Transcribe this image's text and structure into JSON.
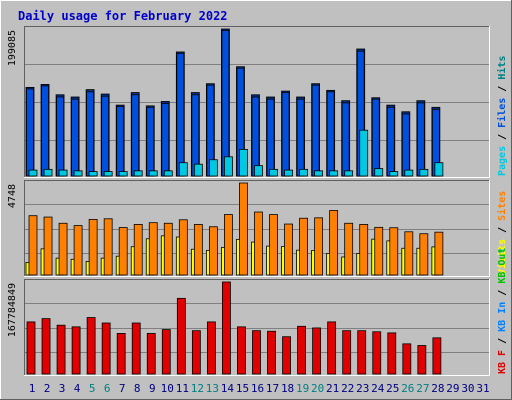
{
  "title": "Daily usage for February 2022",
  "colors": {
    "bg": "#c0c0c0",
    "title": "#0000cc",
    "pages": "#00c8e0",
    "files": "#0050e0",
    "hits": "#008080",
    "visits": "#ffff00",
    "sites": "#ff8000",
    "kbin": "#0080ff",
    "kbout": "#00c000",
    "kbf": "#e00000",
    "weekend": "#008080",
    "weekday": "#000080"
  },
  "chart_data": [
    {
      "type": "bar",
      "name": "hits-files-pages",
      "ymax_label": "199085",
      "right_label": [
        "Pages",
        "Files",
        "Hits"
      ],
      "x": [
        1,
        2,
        3,
        4,
        5,
        6,
        7,
        8,
        9,
        10,
        11,
        12,
        13,
        14,
        15,
        16,
        17,
        18,
        19,
        20,
        21,
        22,
        23,
        24,
        25,
        26,
        27,
        28,
        29,
        30,
        31
      ],
      "series": [
        {
          "name": "Hits",
          "values": [
            120000,
            124000,
            110000,
            107000,
            117000,
            111000,
            96000,
            113000,
            95000,
            101000,
            168000,
            113000,
            125000,
            199085,
            148000,
            110000,
            107000,
            115000,
            107000,
            125000,
            116000,
            102000,
            172000,
            106000,
            96000,
            87000,
            102000,
            93000,
            0,
            0,
            0
          ]
        },
        {
          "name": "Files",
          "values": [
            118000,
            122000,
            107000,
            104000,
            114000,
            108000,
            94000,
            110000,
            93000,
            98000,
            166000,
            110000,
            123000,
            197000,
            146000,
            107000,
            104000,
            113000,
            104000,
            123000,
            114000,
            99000,
            169000,
            104000,
            93000,
            84000,
            99000,
            90000,
            0,
            0,
            0
          ]
        },
        {
          "name": "Pages",
          "values": [
            8000,
            9000,
            8000,
            7000,
            6000,
            6000,
            6000,
            7000,
            7000,
            7000,
            18000,
            16000,
            22000,
            26000,
            36000,
            14000,
            9000,
            8000,
            9000,
            7000,
            7000,
            7000,
            62000,
            10000,
            6000,
            8000,
            9000,
            18000,
            0,
            0,
            0
          ]
        }
      ]
    },
    {
      "type": "bar",
      "name": "sites-visits",
      "ymax_label": "4748",
      "right_label": [
        "Visits",
        "Sites"
      ],
      "x": [
        1,
        2,
        3,
        4,
        5,
        6,
        7,
        8,
        9,
        10,
        11,
        12,
        13,
        14,
        15,
        16,
        17,
        18,
        19,
        20,
        21,
        22,
        23,
        24,
        25,
        26,
        27,
        28,
        29,
        30,
        31
      ],
      "series": [
        {
          "name": "Visits",
          "values": [
            650,
            1350,
            870,
            810,
            700,
            870,
            970,
            1460,
            1870,
            2020,
            1960,
            1330,
            1270,
            1420,
            1840,
            1700,
            1490,
            1470,
            1280,
            1270,
            1110,
            930,
            1110,
            1850,
            1760,
            1380,
            1380,
            1450,
            0,
            0,
            0
          ]
        },
        {
          "name": "Sites",
          "values": [
            3060,
            2990,
            2670,
            2550,
            2870,
            2900,
            2450,
            2610,
            2700,
            2670,
            2850,
            2610,
            2490,
            3120,
            4748,
            3250,
            3120,
            2630,
            2930,
            2950,
            3330,
            2670,
            2610,
            2460,
            2440,
            2230,
            2130,
            2210,
            0,
            0,
            0
          ]
        }
      ]
    },
    {
      "type": "bar",
      "name": "kbytes",
      "ymax_label": "167784849",
      "right_label": [
        "KB F",
        "KB In",
        "KB Out"
      ],
      "x": [
        1,
        2,
        3,
        4,
        5,
        6,
        7,
        8,
        9,
        10,
        11,
        12,
        13,
        14,
        15,
        16,
        17,
        18,
        19,
        20,
        21,
        22,
        23,
        24,
        25,
        26,
        27,
        28,
        29,
        30,
        31
      ],
      "series": [
        {
          "name": "KB F",
          "values": [
            95000000,
            101000000,
            89000000,
            86000000,
            103000000,
            93000000,
            74000000,
            93000000,
            74000000,
            81000000,
            138000000,
            79000000,
            95000000,
            167784849,
            86000000,
            79000000,
            78000000,
            68000000,
            87000000,
            84000000,
            95000000,
            79000000,
            79000000,
            77000000,
            75000000,
            55000000,
            52000000,
            66000000,
            0,
            0,
            0
          ]
        }
      ]
    }
  ],
  "x_labels": [
    "1",
    "2",
    "3",
    "4",
    "5",
    "6",
    "7",
    "8",
    "9",
    "10",
    "11",
    "12",
    "13",
    "14",
    "15",
    "16",
    "17",
    "18",
    "19",
    "20",
    "21",
    "22",
    "23",
    "24",
    "25",
    "26",
    "27",
    "28",
    "29",
    "30",
    "31"
  ],
  "weekend_days": [
    5,
    6,
    12,
    13,
    19,
    20,
    26,
    27
  ]
}
